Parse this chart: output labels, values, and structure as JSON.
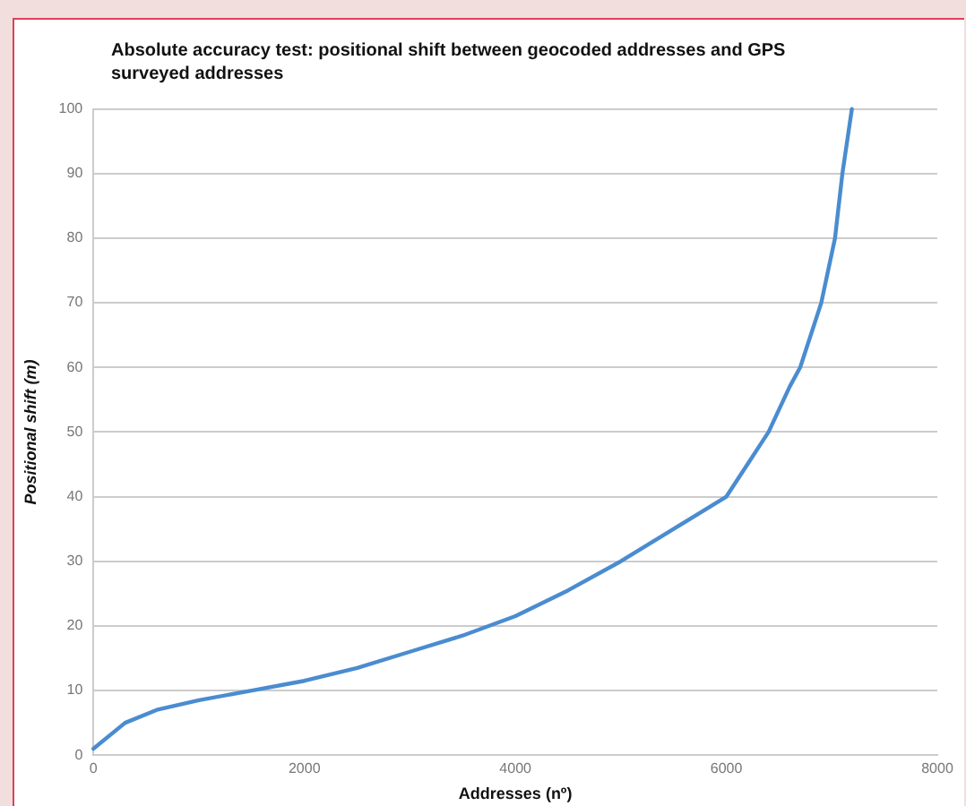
{
  "chart_data": {
    "type": "line",
    "title": "Absolute accuracy test: positional shift between geocoded addresses and GPS surveyed addresses",
    "xlabel": "Addresses (nº)",
    "ylabel": "Positional shift (m)",
    "x": [
      0,
      300,
      600,
      1000,
      1500,
      2000,
      2500,
      3000,
      3500,
      4000,
      4500,
      5000,
      5500,
      6000,
      6200,
      6400,
      6600,
      6700,
      6900,
      7030,
      7100,
      7190
    ],
    "series": [
      {
        "color": "#4a8cd0",
        "values": [
          1,
          5,
          7,
          8.5,
          10,
          11.5,
          13.5,
          16,
          18.5,
          21.5,
          25.5,
          30,
          35,
          40,
          45,
          50,
          57,
          60,
          70,
          80,
          90,
          100
        ]
      }
    ],
    "xlim": [
      0,
      8000
    ],
    "xticks": [
      0,
      2000,
      4000,
      6000,
      8000
    ],
    "ylim": [
      0,
      100
    ],
    "yticks": [
      0,
      10,
      20,
      30,
      40,
      50,
      60,
      70,
      80,
      90,
      100
    ],
    "grid": "y",
    "legend": false,
    "marker": "none",
    "line_style": "solid"
  }
}
